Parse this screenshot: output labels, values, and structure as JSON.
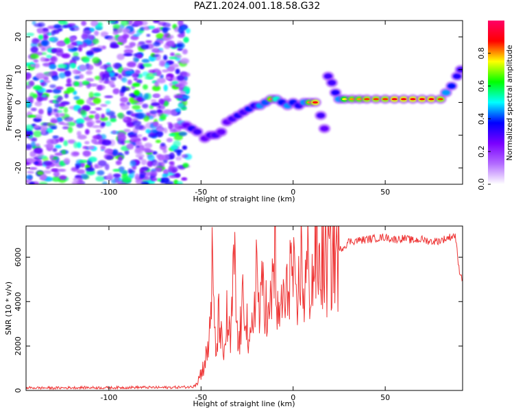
{
  "title": "PAZ1.2024.001.18.58.G32",
  "chart_data": [
    {
      "type": "heatmap",
      "name": "spectrogram",
      "xlabel": "Height of straight line (km)",
      "ylabel": "Frequency (Hz)",
      "xlim": [
        -145,
        92
      ],
      "ylim": [
        -25,
        25
      ],
      "xticks": [
        -100,
        -50,
        0,
        50
      ],
      "yticks": [
        -20,
        -10,
        0,
        10,
        20
      ],
      "xtick_labels": [
        "-100",
        "-50",
        "0",
        "50"
      ],
      "ytick_labels": [
        "-20",
        "-10",
        "0",
        "10",
        "20"
      ],
      "colorbar": {
        "label": "Normalized spectral amplitude",
        "range": [
          0,
          1
        ],
        "ticks": [
          0.0,
          0.2,
          0.4,
          0.6,
          0.8
        ],
        "tick_labels": [
          "0.0",
          "0.2",
          "0.4",
          "0.6",
          "0.8"
        ],
        "colors": [
          "#ffffff",
          "#b36bff",
          "#7a00ff",
          "#0000ff",
          "#00ffff",
          "#00ff00",
          "#ffff00",
          "#ff0000",
          "#ff0066"
        ]
      },
      "noise_region": {
        "x": [
          -145,
          -57
        ],
        "y": [
          -25,
          25
        ],
        "amplitude": [
          0.05,
          0.3
        ]
      },
      "signal_ridge": [
        {
          "x": -58,
          "y": -7,
          "a": 0.25
        },
        {
          "x": -55,
          "y": -8,
          "a": 0.35
        },
        {
          "x": -52,
          "y": -9,
          "a": 0.3
        },
        {
          "x": -48,
          "y": -11,
          "a": 0.25
        },
        {
          "x": -45,
          "y": -10,
          "a": 0.3
        },
        {
          "x": -42,
          "y": -10,
          "a": 0.3
        },
        {
          "x": -39,
          "y": -9,
          "a": 0.25
        },
        {
          "x": -36,
          "y": -6,
          "a": 0.25
        },
        {
          "x": -33,
          "y": -5,
          "a": 0.3
        },
        {
          "x": -30,
          "y": -4,
          "a": 0.35
        },
        {
          "x": -27,
          "y": -3,
          "a": 0.3
        },
        {
          "x": -24,
          "y": -2,
          "a": 0.4
        },
        {
          "x": -21,
          "y": -1,
          "a": 0.35
        },
        {
          "x": -18,
          "y": -1,
          "a": 0.5
        },
        {
          "x": -15,
          "y": 0,
          "a": 0.45
        },
        {
          "x": -12,
          "y": 1,
          "a": 0.8
        },
        {
          "x": -9,
          "y": 1,
          "a": 0.6
        },
        {
          "x": -6,
          "y": 0,
          "a": 0.4
        },
        {
          "x": -3,
          "y": -1,
          "a": 0.5
        },
        {
          "x": 0,
          "y": 0,
          "a": 0.4
        },
        {
          "x": 3,
          "y": -1,
          "a": 0.35
        },
        {
          "x": 6,
          "y": 0,
          "a": 0.5
        },
        {
          "x": 9,
          "y": 0,
          "a": 0.8
        },
        {
          "x": 12,
          "y": 0,
          "a": 0.9
        },
        {
          "x": 15,
          "y": -4,
          "a": 0.3
        },
        {
          "x": 17,
          "y": -8,
          "a": 0.25
        },
        {
          "x": 19,
          "y": 8,
          "a": 0.3
        },
        {
          "x": 21,
          "y": 6,
          "a": 0.3
        },
        {
          "x": 23,
          "y": 3,
          "a": 0.35
        },
        {
          "x": 25,
          "y": 1,
          "a": 0.5
        },
        {
          "x": 28,
          "y": 1,
          "a": 0.75
        },
        {
          "x": 32,
          "y": 1,
          "a": 0.8
        },
        {
          "x": 36,
          "y": 1,
          "a": 0.8
        },
        {
          "x": 40,
          "y": 1,
          "a": 0.85
        },
        {
          "x": 45,
          "y": 1,
          "a": 0.85
        },
        {
          "x": 50,
          "y": 1,
          "a": 0.85
        },
        {
          "x": 55,
          "y": 1,
          "a": 0.9
        },
        {
          "x": 60,
          "y": 1,
          "a": 0.9
        },
        {
          "x": 65,
          "y": 1,
          "a": 0.9
        },
        {
          "x": 70,
          "y": 1,
          "a": 0.9
        },
        {
          "x": 75,
          "y": 1,
          "a": 0.9
        },
        {
          "x": 80,
          "y": 1,
          "a": 0.85
        },
        {
          "x": 83,
          "y": 3,
          "a": 0.5
        },
        {
          "x": 86,
          "y": 5,
          "a": 0.4
        },
        {
          "x": 89,
          "y": 8,
          "a": 0.35
        },
        {
          "x": 91,
          "y": 10,
          "a": 0.3
        }
      ]
    },
    {
      "type": "line",
      "name": "snr",
      "xlabel": "Height of straight line (km)",
      "ylabel": "SNR (10 * v/v)",
      "xlim": [
        -145,
        92
      ],
      "ylim": [
        0,
        7400
      ],
      "xticks": [
        -100,
        -50,
        0,
        50
      ],
      "yticks": [
        0,
        2000,
        4000,
        6000
      ],
      "xtick_labels": [
        "-100",
        "-50",
        "0",
        "50"
      ],
      "ytick_labels": [
        "0",
        "2000",
        "4000",
        "6000"
      ],
      "color": "#ee3333",
      "series": [
        {
          "x": [
            -145,
            -130,
            -115,
            -100,
            -85,
            -70,
            -55,
            -52,
            -49,
            -46,
            -44,
            -42,
            -40,
            -38,
            -36,
            -34,
            -32,
            -30,
            -28,
            -26,
            -24,
            -22,
            -20,
            -18,
            -16,
            -14,
            -12,
            -10,
            -8,
            -6,
            -4,
            -2,
            0,
            2,
            4,
            6,
            8,
            10,
            12,
            14,
            16,
            18,
            20,
            22,
            24,
            26,
            28,
            30,
            35,
            40,
            45,
            50,
            55,
            60,
            65,
            70,
            75,
            80,
            85,
            88,
            90,
            92
          ],
          "y": [
            120,
            110,
            130,
            120,
            140,
            130,
            160,
            400,
            1000,
            1800,
            5300,
            1500,
            3500,
            1200,
            3200,
            2000,
            5800,
            1800,
            3200,
            4500,
            1600,
            2800,
            5700,
            3000,
            5500,
            2800,
            3800,
            6500,
            2600,
            4300,
            3600,
            5600,
            5200,
            3000,
            6100,
            4300,
            5600,
            4600,
            6300,
            5400,
            6000,
            5600,
            5900,
            6300,
            6100,
            6400,
            6500,
            6700,
            6750,
            6800,
            6850,
            6900,
            6800,
            6850,
            6750,
            6800,
            6700,
            6750,
            6900,
            7000,
            5500,
            5000
          ]
        }
      ]
    }
  ]
}
